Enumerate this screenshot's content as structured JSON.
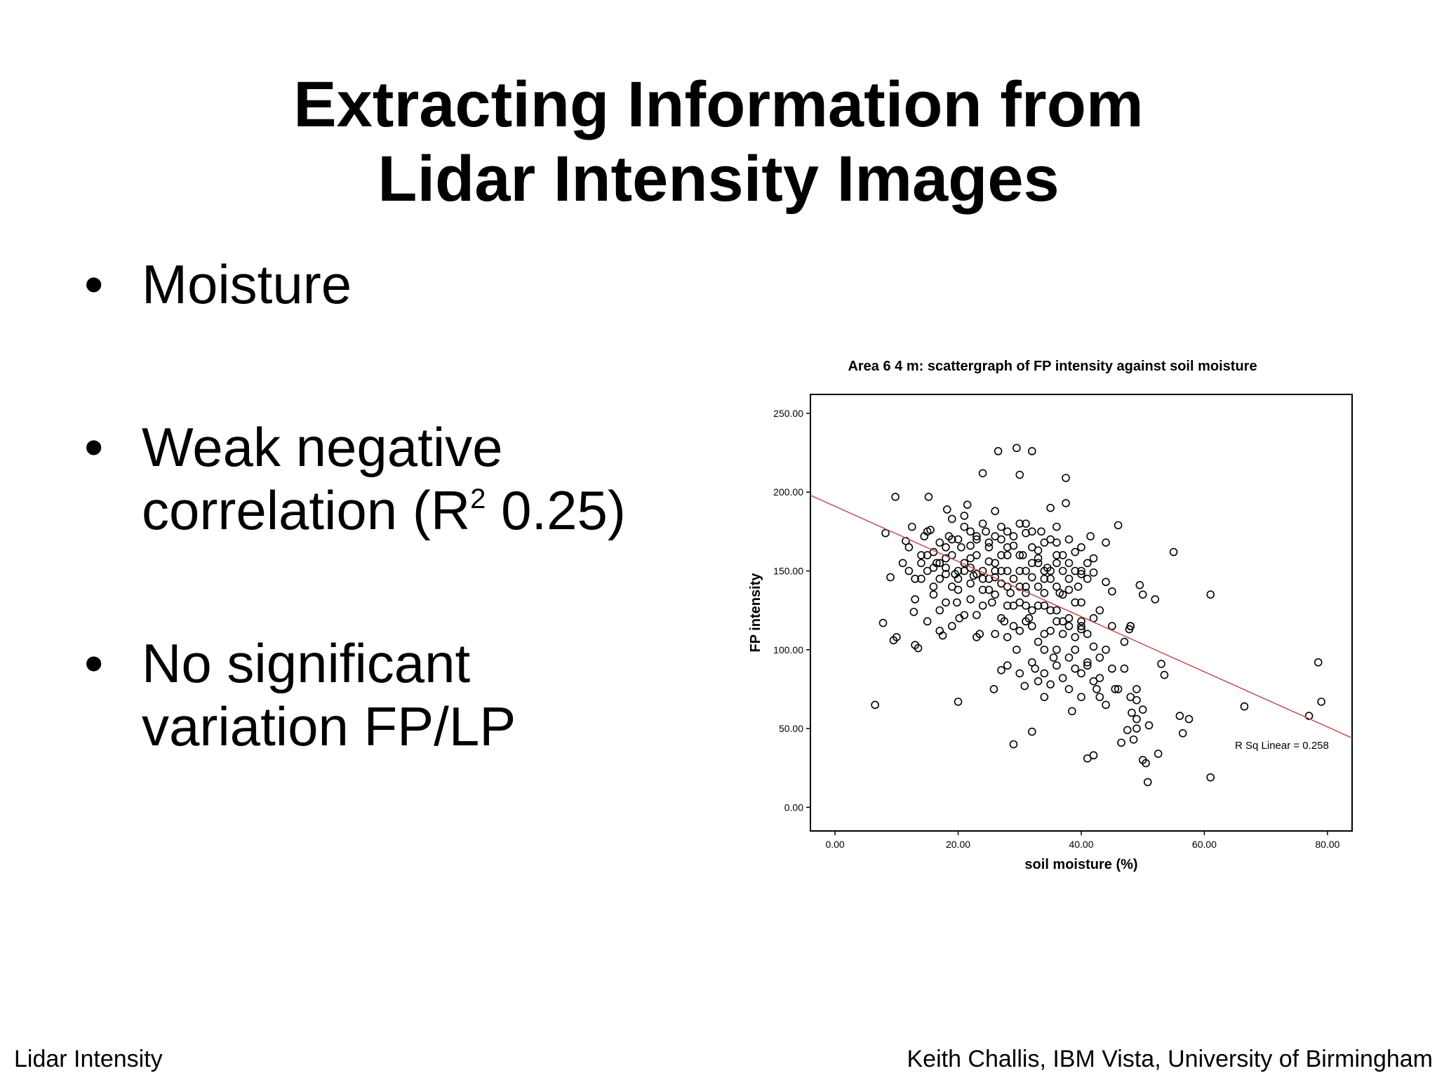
{
  "slide": {
    "title_line1": "Extracting Information from",
    "title_line2": "Lidar Intensity Images",
    "bullets": [
      {
        "marker": "•",
        "lines": [
          "Moisture"
        ]
      },
      {
        "marker": "•",
        "line1": "Weak negative",
        "line2_pre": "correlation (R",
        "line2_sup": "2",
        "line2_post": " 0.25)"
      },
      {
        "marker": "•",
        "line1": "No significant",
        "line2": "variation FP/LP"
      }
    ],
    "footer_left": "Lidar Intensity",
    "footer_right": "Keith Challis, IBM Vista, University of Birmingham"
  },
  "chart_data": {
    "type": "scatter",
    "title": "Area 6 4 m: scattergraph of FP intensity against soil moisture",
    "xlabel": "soil moisture (%)",
    "ylabel": "FP intensity",
    "xlim": [
      -4,
      84
    ],
    "ylim": [
      -15,
      262
    ],
    "xticks": [
      "0.00",
      "20.00",
      "40.00",
      "60.00",
      "80.00"
    ],
    "yticks": [
      "0.00",
      "50.00",
      "100.00",
      "150.00",
      "200.00",
      "250.00"
    ],
    "grid": false,
    "fit_line": {
      "label": "R Sq Linear = 0.258",
      "x": [
        -4,
        84
      ],
      "y": [
        198,
        44
      ],
      "color": "#c0504d"
    },
    "series": [
      {
        "points": [
          [
            6.5,
            65
          ],
          [
            7.8,
            117
          ],
          [
            8.2,
            174
          ],
          [
            9.0,
            146
          ],
          [
            9.5,
            106
          ],
          [
            10.0,
            108
          ],
          [
            9.8,
            197
          ],
          [
            11.0,
            155
          ],
          [
            11.5,
            169
          ],
          [
            12.0,
            165
          ],
          [
            12.5,
            178
          ],
          [
            12.8,
            124
          ],
          [
            13.0,
            103
          ],
          [
            13.5,
            101
          ],
          [
            14.0,
            145
          ],
          [
            14.5,
            172
          ],
          [
            15.0,
            160
          ],
          [
            15.5,
            176
          ],
          [
            15.2,
            197
          ],
          [
            16.0,
            140
          ],
          [
            16.5,
            155
          ],
          [
            17.0,
            112
          ],
          [
            17.5,
            109
          ],
          [
            18.0,
            152
          ],
          [
            18.5,
            172
          ],
          [
            18.2,
            189
          ],
          [
            19.0,
            183
          ],
          [
            19.5,
            148
          ],
          [
            19.8,
            130
          ],
          [
            20.0,
            67
          ],
          [
            20.2,
            120
          ],
          [
            20.5,
            165
          ],
          [
            21.0,
            185
          ],
          [
            21.5,
            192
          ],
          [
            22.0,
            158
          ],
          [
            22.5,
            147
          ],
          [
            23.0,
            172
          ],
          [
            23.0,
            108
          ],
          [
            23.5,
            110
          ],
          [
            24.0,
            212
          ],
          [
            24.5,
            175
          ],
          [
            25.0,
            145
          ],
          [
            25.5,
            130
          ],
          [
            25.8,
            75
          ],
          [
            26.0,
            188
          ],
          [
            26.5,
            226
          ],
          [
            27.0,
            150
          ],
          [
            27.5,
            118
          ],
          [
            27.0,
            87
          ],
          [
            28.0,
            165
          ],
          [
            28.5,
            136
          ],
          [
            29.0,
            172
          ],
          [
            29.5,
            100
          ],
          [
            29.0,
            40
          ],
          [
            29.5,
            228
          ],
          [
            30.0,
            211
          ],
          [
            30.5,
            160
          ],
          [
            30.8,
            77
          ],
          [
            31.0,
            140
          ],
          [
            31.5,
            120
          ],
          [
            31.0,
            180
          ],
          [
            32.0,
            226
          ],
          [
            32.5,
            88
          ],
          [
            32.0,
            48
          ],
          [
            33.0,
            155
          ],
          [
            33.5,
            175
          ],
          [
            34.0,
            110
          ],
          [
            34.5,
            152
          ],
          [
            34.0,
            70
          ],
          [
            35.0,
            190
          ],
          [
            35.5,
            95
          ],
          [
            36.0,
            168
          ],
          [
            36.5,
            136
          ],
          [
            37.0,
            118
          ],
          [
            37.5,
            209
          ],
          [
            37.5,
            193
          ],
          [
            38.0,
            75
          ],
          [
            38.5,
            61
          ],
          [
            39.0,
            100
          ],
          [
            39.5,
            140
          ],
          [
            40.0,
            113
          ],
          [
            40.0,
            70
          ],
          [
            41.0,
            31
          ],
          [
            41.5,
            172
          ],
          [
            42.0,
            149
          ],
          [
            42.0,
            33
          ],
          [
            42.5,
            75
          ],
          [
            43.0,
            125
          ],
          [
            44.0,
            143
          ],
          [
            45.0,
            137
          ],
          [
            45.5,
            75
          ],
          [
            46.0,
            179
          ],
          [
            46.5,
            41
          ],
          [
            47.0,
            88
          ],
          [
            47.5,
            49
          ],
          [
            47.8,
            113
          ],
          [
            48.0,
            115
          ],
          [
            48.2,
            60
          ],
          [
            48.5,
            43
          ],
          [
            49.0,
            56
          ],
          [
            49.0,
            75
          ],
          [
            49.5,
            141
          ],
          [
            50.0,
            135
          ],
          [
            50.5,
            28
          ],
          [
            50.8,
            16
          ],
          [
            51.0,
            52
          ],
          [
            52.0,
            132
          ],
          [
            52.5,
            34
          ],
          [
            53.0,
            91
          ],
          [
            53.5,
            84
          ],
          [
            55.0,
            162
          ],
          [
            56.0,
            58
          ],
          [
            56.5,
            47
          ],
          [
            57.5,
            56
          ],
          [
            61.0,
            135
          ],
          [
            61.0,
            19
          ],
          [
            66.5,
            64
          ],
          [
            77.0,
            58
          ],
          [
            78.5,
            92
          ],
          [
            79.0,
            67
          ],
          [
            14,
            160
          ],
          [
            15,
            150
          ],
          [
            16,
            162
          ],
          [
            17,
            145
          ],
          [
            18,
            158
          ],
          [
            19,
            140
          ],
          [
            20,
            150
          ],
          [
            21,
            155
          ],
          [
            22,
            142
          ],
          [
            23,
            160
          ],
          [
            24,
            150
          ],
          [
            25,
            165
          ],
          [
            26,
            155
          ],
          [
            27,
            170
          ],
          [
            28,
            150
          ],
          [
            29,
            145
          ],
          [
            30,
            160
          ],
          [
            31,
            150
          ],
          [
            32,
            165
          ],
          [
            33,
            140
          ],
          [
            34,
            145
          ],
          [
            35,
            150
          ],
          [
            36,
            140
          ],
          [
            37,
            135
          ],
          [
            38,
            145
          ],
          [
            39,
            150
          ],
          [
            40,
            130
          ],
          [
            15,
            175
          ],
          [
            17,
            168
          ],
          [
            19,
            170
          ],
          [
            21,
            178
          ],
          [
            23,
            170
          ],
          [
            25,
            168
          ],
          [
            27,
            178
          ],
          [
            29,
            166
          ],
          [
            31,
            174
          ],
          [
            33,
            163
          ],
          [
            35,
            170
          ],
          [
            37,
            160
          ],
          [
            39,
            162
          ],
          [
            41,
            155
          ],
          [
            16,
            135
          ],
          [
            18,
            130
          ],
          [
            20,
            138
          ],
          [
            22,
            132
          ],
          [
            24,
            128
          ],
          [
            26,
            135
          ],
          [
            28,
            128
          ],
          [
            30,
            130
          ],
          [
            32,
            125
          ],
          [
            34,
            128
          ],
          [
            36,
            125
          ],
          [
            38,
            120
          ],
          [
            40,
            118
          ],
          [
            42,
            120
          ],
          [
            21,
            150
          ],
          [
            22,
            166
          ],
          [
            23,
            148
          ],
          [
            24,
            138
          ],
          [
            25,
            156
          ],
          [
            26,
            146
          ],
          [
            27,
            160
          ],
          [
            28,
            140
          ],
          [
            30,
            150
          ],
          [
            31,
            136
          ],
          [
            32,
            146
          ],
          [
            33,
            158
          ],
          [
            34,
            136
          ],
          [
            35,
            145
          ],
          [
            36,
            155
          ],
          [
            37,
            150
          ],
          [
            38,
            138
          ],
          [
            39,
            130
          ],
          [
            40,
            148
          ],
          [
            41,
            145
          ],
          [
            17,
            155
          ],
          [
            18,
            165
          ],
          [
            19,
            160
          ],
          [
            20,
            170
          ],
          [
            22,
            175
          ],
          [
            24,
            180
          ],
          [
            26,
            172
          ],
          [
            28,
            175
          ],
          [
            30,
            180
          ],
          [
            32,
            175
          ],
          [
            34,
            168
          ],
          [
            36,
            178
          ],
          [
            38,
            170
          ],
          [
            40,
            165
          ],
          [
            42,
            158
          ],
          [
            44,
            168
          ],
          [
            26,
            110
          ],
          [
            27,
            120
          ],
          [
            28,
            108
          ],
          [
            29,
            115
          ],
          [
            30,
            112
          ],
          [
            31,
            118
          ],
          [
            32,
            115
          ],
          [
            33,
            105
          ],
          [
            34,
            100
          ],
          [
            35,
            112
          ],
          [
            36,
            118
          ],
          [
            37,
            110
          ],
          [
            38,
            115
          ],
          [
            39,
            108
          ],
          [
            40,
            115
          ],
          [
            41,
            110
          ],
          [
            42,
            102
          ],
          [
            43,
            95
          ],
          [
            44,
            100
          ],
          [
            28,
            90
          ],
          [
            30,
            85
          ],
          [
            32,
            92
          ],
          [
            33,
            80
          ],
          [
            34,
            85
          ],
          [
            35,
            78
          ],
          [
            36,
            90
          ],
          [
            37,
            82
          ],
          [
            38,
            95
          ],
          [
            39,
            88
          ],
          [
            40,
            85
          ],
          [
            41,
            90
          ],
          [
            42,
            80
          ],
          [
            43,
            70
          ],
          [
            44,
            65
          ],
          [
            45,
            88
          ],
          [
            46,
            75
          ],
          [
            48,
            70
          ],
          [
            49,
            50
          ],
          [
            50,
            30
          ],
          [
            12,
            150
          ],
          [
            13,
            145
          ],
          [
            14,
            155
          ],
          [
            16,
            152
          ],
          [
            18,
            148
          ],
          [
            20,
            145
          ],
          [
            22,
            152
          ],
          [
            24,
            145
          ],
          [
            26,
            150
          ],
          [
            28,
            160
          ],
          [
            30,
            140
          ],
          [
            32,
            155
          ],
          [
            34,
            150
          ],
          [
            36,
            160
          ],
          [
            38,
            155
          ],
          [
            40,
            150
          ],
          [
            45,
            115
          ],
          [
            47,
            105
          ],
          [
            48,
            115
          ],
          [
            49,
            68
          ],
          [
            50,
            62
          ],
          [
            41,
            92
          ],
          [
            43,
            82
          ],
          [
            36,
            100
          ],
          [
            35,
            125
          ],
          [
            33,
            128
          ],
          [
            31,
            128
          ],
          [
            29,
            128
          ],
          [
            27,
            142
          ],
          [
            25,
            138
          ],
          [
            23,
            122
          ],
          [
            21,
            122
          ],
          [
            19,
            115
          ],
          [
            17,
            125
          ],
          [
            15,
            118
          ],
          [
            13,
            132
          ]
        ]
      }
    ]
  }
}
